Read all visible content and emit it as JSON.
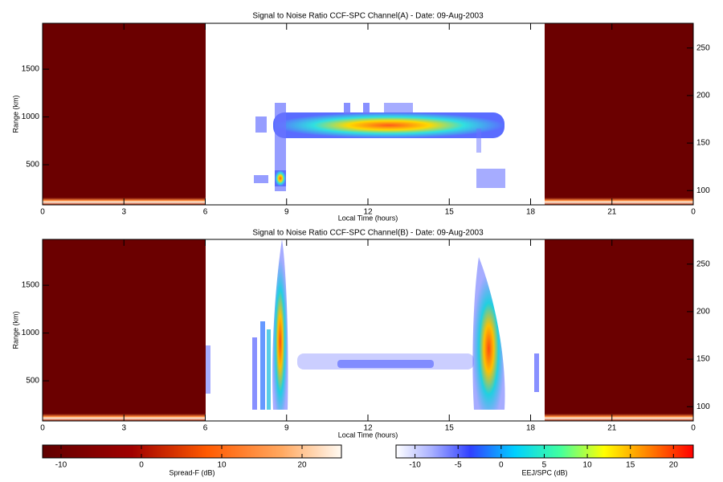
{
  "chart_data": [
    {
      "type": "heatmap",
      "title": "Signal to Noise Ratio CCF-SPC Channel(A) - Date: 09-Aug-2003",
      "xlabel": "Local Time (hours)",
      "ylabel": "Range (km)",
      "xlim": [
        0,
        24
      ],
      "xticks": [
        0,
        3,
        6,
        9,
        12,
        15,
        18,
        21,
        {
          "value": 24,
          "label": "0"
        }
      ],
      "ylim": [
        80,
        1980
      ],
      "yticks": [
        500,
        1000,
        1500
      ],
      "y2lim": [
        85,
        276
      ],
      "y2ticks": [
        100,
        150,
        200,
        250
      ]
    },
    {
      "type": "heatmap",
      "title": "Signal to Noise Ratio CCF-SPC Channel(B) - Date: 09-Aug-2003",
      "xlabel": "Local Time (hours)",
      "ylabel": "Range (km)",
      "xlim": [
        0,
        24
      ],
      "xticks": [
        0,
        3,
        6,
        9,
        12,
        15,
        18,
        21,
        {
          "value": 24,
          "label": "0"
        }
      ],
      "ylim": [
        80,
        1980
      ],
      "yticks": [
        500,
        1000,
        1500
      ],
      "y2lim": [
        85,
        276
      ],
      "y2ticks": [
        100,
        150,
        200,
        250
      ]
    }
  ],
  "colorbars": [
    {
      "label": "Spread-F (dB)",
      "lim": [
        -12.3,
        24.9
      ],
      "ticks": [
        -10,
        0,
        10,
        20
      ]
    },
    {
      "label": "EEJ/SPC (dB)",
      "lim": [
        -12.2,
        22.3
      ],
      "ticks": [
        -10,
        -5,
        0,
        5,
        10,
        15,
        20
      ]
    }
  ]
}
